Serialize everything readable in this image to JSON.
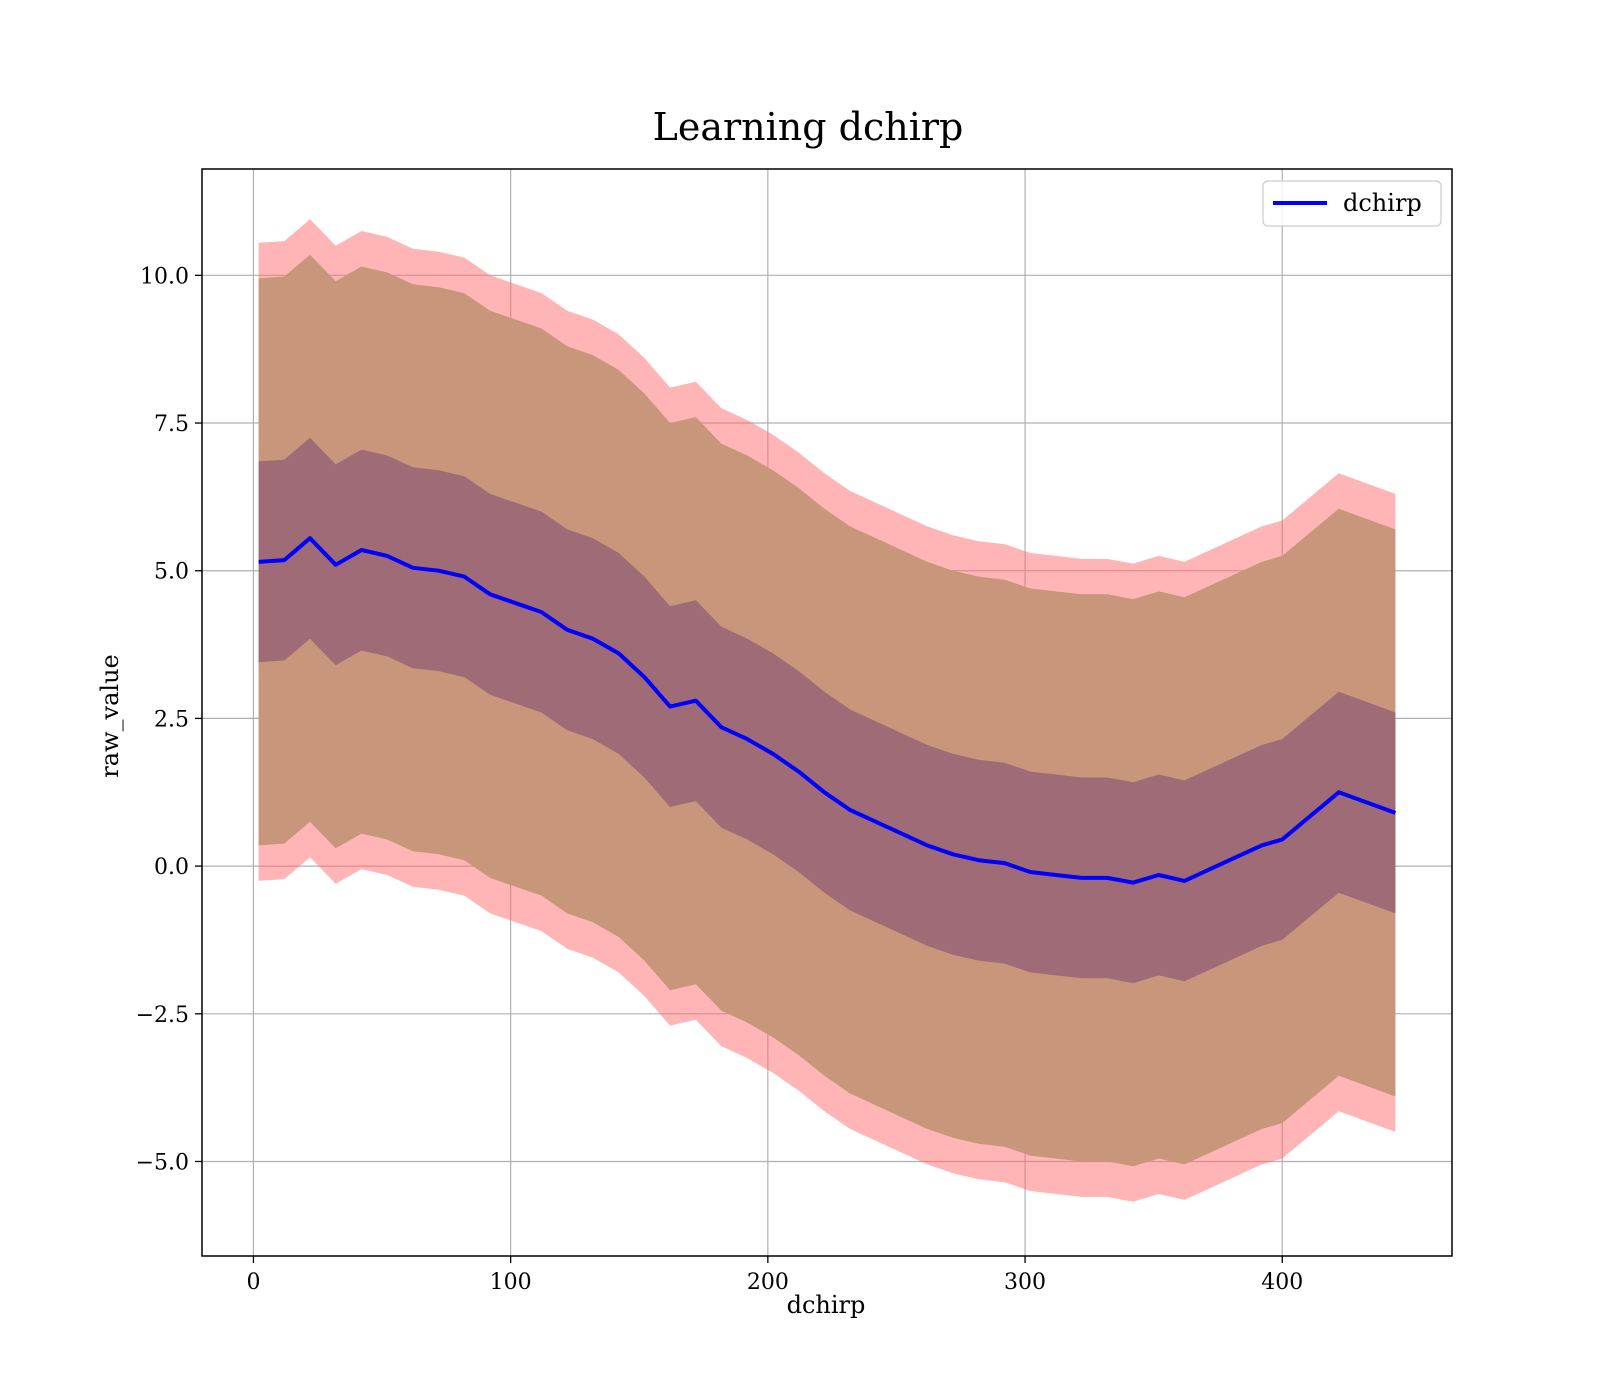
{
  "chart_data": {
    "type": "line",
    "title": "Learning dchirp",
    "xlabel": "dchirp",
    "ylabel": "raw_value",
    "xlim": [
      -20,
      466
    ],
    "ylim": [
      -6.6,
      11.8
    ],
    "xticks": [
      0,
      100,
      200,
      300,
      400
    ],
    "xtick_labels": [
      "0",
      "100",
      "200",
      "300",
      "400"
    ],
    "yticks": [
      -5.0,
      -2.5,
      0.0,
      2.5,
      5.0,
      7.5,
      10.0
    ],
    "ytick_labels": [
      "−5.0",
      "−2.5",
      "0.0",
      "2.5",
      "5.0",
      "7.5",
      "10.0"
    ],
    "grid": true,
    "legend": {
      "position": "top-right",
      "entries": [
        {
          "label": "dchirp",
          "color": "#0000ff"
        }
      ]
    },
    "x": [
      2,
      12,
      22,
      32,
      42,
      52,
      62,
      72,
      82,
      92,
      102,
      112,
      122,
      132,
      142,
      152,
      162,
      172,
      182,
      192,
      202,
      212,
      222,
      232,
      242,
      252,
      262,
      272,
      282,
      292,
      302,
      312,
      322,
      332,
      342,
      352,
      362,
      372,
      382,
      392,
      400,
      422,
      444
    ],
    "series": [
      {
        "name": "dchirp",
        "color": "#0000ff",
        "values": [
          5.15,
          5.18,
          5.55,
          5.1,
          5.35,
          5.25,
          5.05,
          5.0,
          4.9,
          4.6,
          4.45,
          4.3,
          4.0,
          3.85,
          3.6,
          3.2,
          2.7,
          2.8,
          2.35,
          2.15,
          1.9,
          1.6,
          1.25,
          0.95,
          0.75,
          0.55,
          0.35,
          0.2,
          0.1,
          0.05,
          -0.1,
          -0.15,
          -0.2,
          -0.2,
          -0.28,
          -0.15,
          -0.25,
          -0.05,
          0.15,
          0.35,
          0.45,
          1.25,
          0.9
        ]
      }
    ],
    "bands": [
      {
        "name": "outer",
        "color": "#ff6b6b",
        "offset": 5.4
      },
      {
        "name": "middle",
        "color": "#c8967a",
        "offset": 4.8
      },
      {
        "name": "inner",
        "color": "#9e6b77",
        "offset": 1.7
      }
    ]
  }
}
